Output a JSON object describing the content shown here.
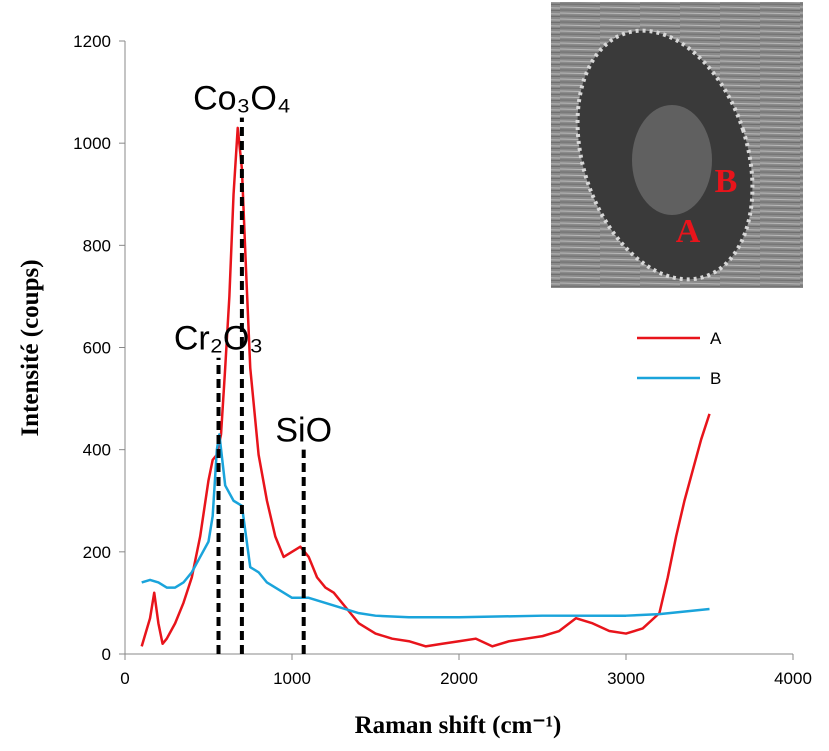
{
  "chart_data": {
    "type": "line",
    "x_label": "Raman shift (cm⁻¹)",
    "y_label": "Intensité (coups)",
    "xlim": [
      0,
      4000
    ],
    "xticks": [
      0,
      1000,
      2000,
      3000,
      4000
    ],
    "ylim": [
      0,
      1200
    ],
    "yticks": [
      0,
      200,
      400,
      600,
      800,
      1000,
      1200
    ],
    "grid": false,
    "legend": "right",
    "series": [
      {
        "name": "A",
        "color": "#e8141b",
        "x": [
          100,
          150,
          175,
          200,
          225,
          250,
          300,
          350,
          400,
          450,
          500,
          525,
          550,
          575,
          600,
          625,
          650,
          675,
          700,
          725,
          750,
          800,
          850,
          900,
          950,
          1000,
          1050,
          1100,
          1150,
          1200,
          1250,
          1300,
          1350,
          1400,
          1500,
          1600,
          1700,
          1800,
          1900,
          2000,
          2100,
          2200,
          2300,
          2400,
          2500,
          2600,
          2700,
          2800,
          2900,
          3000,
          3100,
          3200,
          3250,
          3300,
          3350,
          3400,
          3450,
          3500
        ],
        "values": [
          15,
          70,
          120,
          60,
          20,
          30,
          60,
          100,
          150,
          230,
          340,
          380,
          390,
          430,
          560,
          700,
          900,
          1030,
          950,
          750,
          560,
          390,
          300,
          230,
          190,
          200,
          210,
          190,
          150,
          130,
          120,
          100,
          80,
          60,
          40,
          30,
          25,
          15,
          20,
          25,
          30,
          15,
          25,
          30,
          35,
          45,
          70,
          60,
          45,
          40,
          50,
          80,
          150,
          230,
          300,
          360,
          420,
          470
        ]
      },
      {
        "name": "B",
        "color": "#1aa4db",
        "x": [
          100,
          150,
          200,
          250,
          300,
          350,
          400,
          450,
          500,
          525,
          550,
          565,
          600,
          650,
          700,
          750,
          800,
          850,
          900,
          950,
          1000,
          1100,
          1200,
          1300,
          1400,
          1500,
          1700,
          2000,
          2500,
          3000,
          3200,
          3500
        ],
        "values": [
          140,
          145,
          140,
          130,
          130,
          140,
          160,
          190,
          220,
          270,
          400,
          430,
          330,
          300,
          290,
          170,
          160,
          140,
          130,
          120,
          110,
          110,
          100,
          90,
          80,
          75,
          72,
          72,
          75,
          75,
          78,
          88
        ]
      }
    ],
    "annotations": [
      {
        "text": "Cr₂O₃",
        "x": 560,
        "y": 580
      },
      {
        "text": "Co₃O₄",
        "x": 700,
        "y": 1050
      },
      {
        "text": "SiO",
        "x": 1070,
        "y": 400
      }
    ],
    "inset_labels": [
      "A",
      "B"
    ]
  }
}
